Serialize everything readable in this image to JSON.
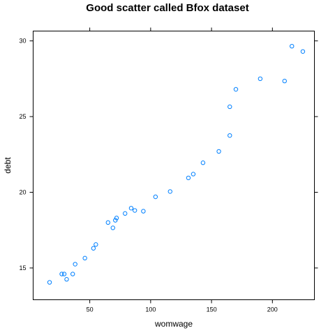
{
  "chart_data": {
    "type": "scatter",
    "title": "Good scatter called Bfox dataset",
    "xlabel": "womwage",
    "ylabel": "debt",
    "xlim": [
      3.5,
      234.5
    ],
    "ylim": [
      12.9,
      30.65
    ],
    "xticks": [
      50,
      100,
      150,
      200
    ],
    "yticks": [
      15,
      20,
      25,
      30
    ],
    "grid": false,
    "point_color": "#0080ff",
    "points": [
      {
        "x": 17,
        "y": 14.05
      },
      {
        "x": 27,
        "y": 14.6
      },
      {
        "x": 29,
        "y": 14.6
      },
      {
        "x": 31,
        "y": 14.25
      },
      {
        "x": 36,
        "y": 14.6
      },
      {
        "x": 38,
        "y": 15.25
      },
      {
        "x": 46,
        "y": 15.65
      },
      {
        "x": 53,
        "y": 16.3
      },
      {
        "x": 55,
        "y": 16.55
      },
      {
        "x": 65,
        "y": 18.0
      },
      {
        "x": 69,
        "y": 17.65
      },
      {
        "x": 71,
        "y": 18.15
      },
      {
        "x": 72,
        "y": 18.3
      },
      {
        "x": 79,
        "y": 18.6
      },
      {
        "x": 84,
        "y": 18.95
      },
      {
        "x": 87,
        "y": 18.8
      },
      {
        "x": 94,
        "y": 18.75
      },
      {
        "x": 104,
        "y": 19.7
      },
      {
        "x": 116,
        "y": 20.05
      },
      {
        "x": 131,
        "y": 20.95
      },
      {
        "x": 135,
        "y": 21.2
      },
      {
        "x": 143,
        "y": 21.95
      },
      {
        "x": 156,
        "y": 22.7
      },
      {
        "x": 165,
        "y": 23.75
      },
      {
        "x": 165,
        "y": 25.65
      },
      {
        "x": 170,
        "y": 26.8
      },
      {
        "x": 190,
        "y": 27.5
      },
      {
        "x": 210,
        "y": 27.35
      },
      {
        "x": 216,
        "y": 29.65
      },
      {
        "x": 225,
        "y": 29.3
      }
    ]
  }
}
